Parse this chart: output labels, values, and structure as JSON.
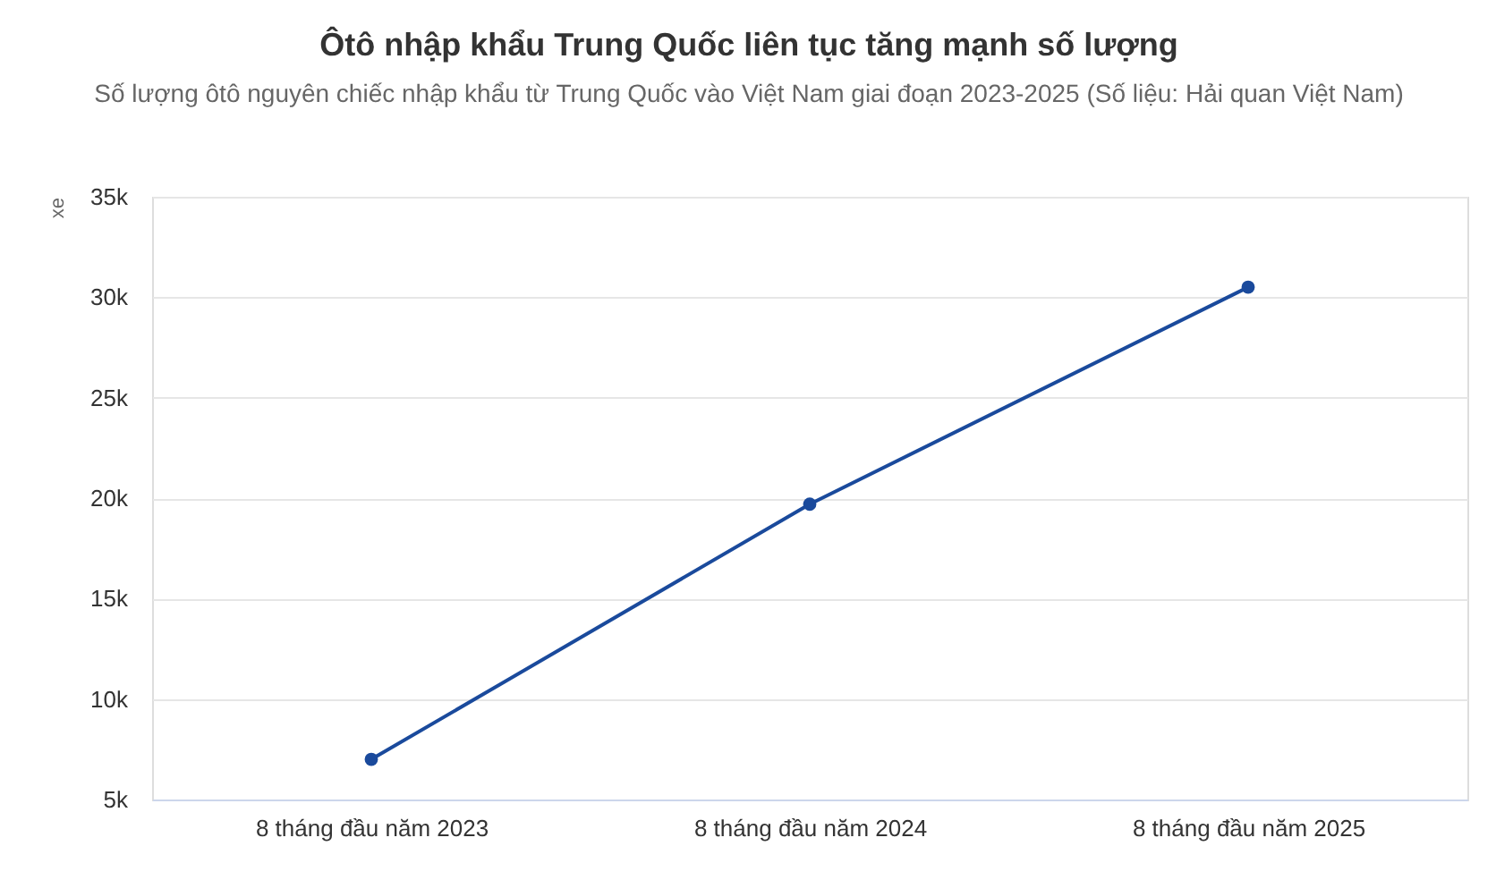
{
  "chart_data": {
    "type": "line",
    "title": "Ôtô nhập khẩu Trung Quốc liên tục tăng mạnh số lượng",
    "subtitle": "Số lượng ôtô nguyên chiếc nhập khẩu từ Trung Quốc vào Việt Nam giai đoạn 2023-2025 (Số liệu: Hải quan Việt Nam)",
    "ylabel": "xe",
    "categories": [
      "8 tháng đầu năm 2023",
      "8 tháng đầu năm 2024",
      "8 tháng đầu năm 2025"
    ],
    "series": [
      {
        "color": "#1a4a9c",
        "values": [
          7000,
          19700,
          30500
        ]
      }
    ],
    "ylim": [
      5000,
      35000
    ],
    "yticks": [
      {
        "value": 5000,
        "label": "5k"
      },
      {
        "value": 10000,
        "label": "10k"
      },
      {
        "value": 15000,
        "label": "15k"
      },
      {
        "value": 20000,
        "label": "20k"
      },
      {
        "value": 25000,
        "label": "25k"
      },
      {
        "value": 30000,
        "label": "30k"
      },
      {
        "value": 35000,
        "label": "35k"
      }
    ],
    "grid": "y",
    "marker": "circle",
    "line_style": "solid"
  }
}
